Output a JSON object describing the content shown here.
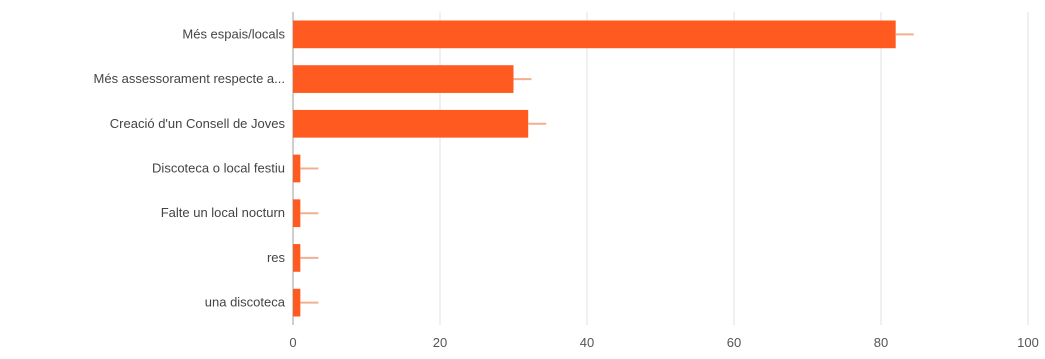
{
  "chart_data": {
    "type": "bar",
    "orientation": "horizontal",
    "categories": [
      "Més espais/locals",
      "Més assessorament respecte a...",
      "Creació d'un Consell de Joves",
      "Discoteca o local festiu",
      "Falte un local nocturn",
      "res",
      "una discoteca"
    ],
    "values": [
      82,
      30,
      32,
      1,
      1,
      1,
      1
    ],
    "xlim": [
      0,
      100
    ],
    "xticks": [
      0,
      20,
      40,
      60,
      80,
      100
    ],
    "grid": true,
    "bar_color": "#ff5a1f",
    "title": "",
    "xlabel": "",
    "ylabel": ""
  }
}
